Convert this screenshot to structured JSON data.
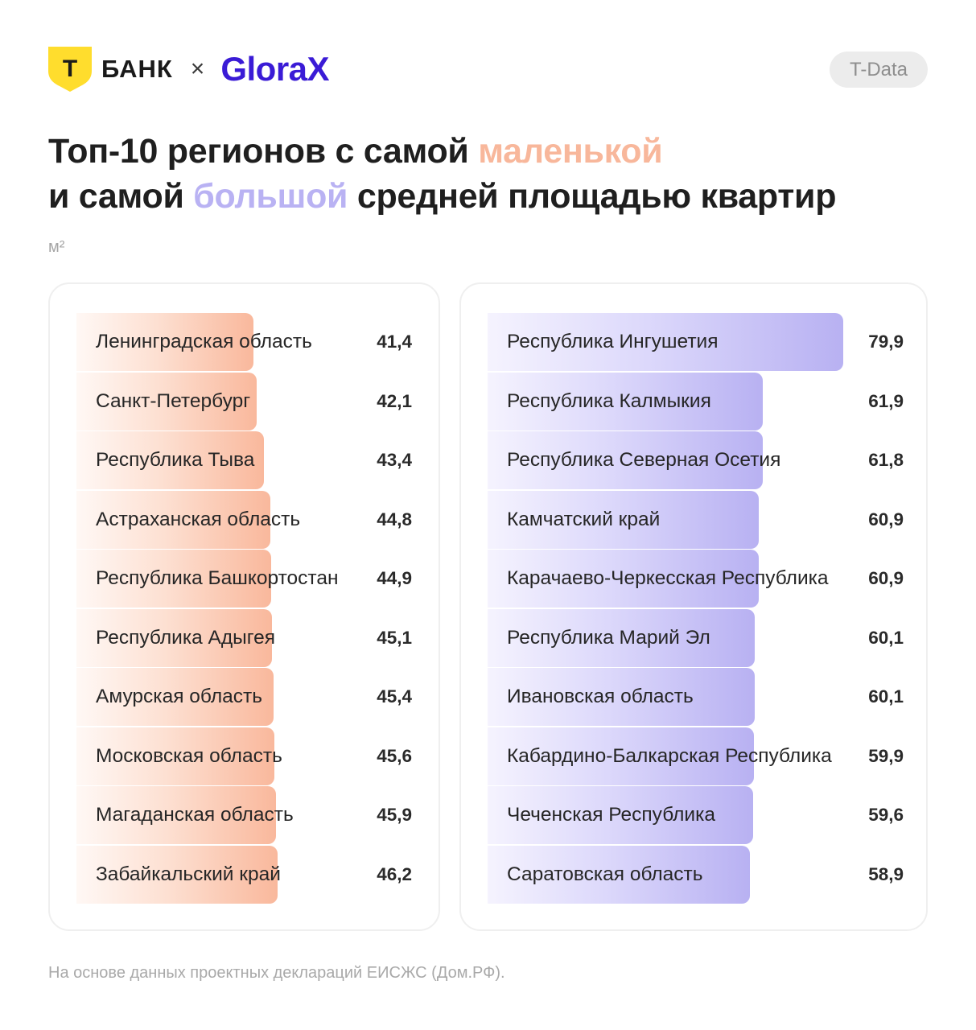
{
  "brand": {
    "bank_letter": "Т",
    "bank_name": "БАНК",
    "separator": "×",
    "partner": "GloraX",
    "shield_color": "#ffdd2d",
    "partner_color": "#3a1bd6"
  },
  "badge": "T-Data",
  "title": {
    "part1": "Топ-10 регионов с самой ",
    "highlight_small": "маленькой",
    "part2": "и самой ",
    "highlight_big": "большой",
    "part3": " средней площадью квартир"
  },
  "unit": "м²",
  "chart_data": [
    {
      "type": "bar",
      "orientation": "horizontal",
      "color": "#f9b89c",
      "categories": [
        "Ленинградская область",
        "Санкт-Петербург",
        "Республика Тыва",
        "Астраханская область",
        "Республика Башкортостан",
        "Республика Адыгея",
        "Амурская область",
        "Московская область",
        "Магаданская область",
        "Забайкальский край"
      ],
      "values": [
        41.4,
        42.1,
        43.4,
        44.8,
        44.9,
        45.1,
        45.4,
        45.6,
        45.9,
        46.2
      ],
      "value_labels": [
        "41,4",
        "42,1",
        "43,4",
        "44,8",
        "44,9",
        "45,1",
        "45,4",
        "45,6",
        "45,9",
        "46,2"
      ]
    },
    {
      "type": "bar",
      "orientation": "horizontal",
      "color": "#b8b1f2",
      "categories": [
        "Республика Ингушетия",
        "Республика Калмыкия",
        "Республика Северная Осетия",
        "Камчатский край",
        "Карачаево-Черкесская Республика",
        "Республика Марий Эл",
        "Ивановская область",
        "Кабардино-Балкарская Республика",
        "Чеченская Республика",
        "Саратовская область"
      ],
      "values": [
        79.9,
        61.9,
        61.8,
        60.9,
        60.9,
        60.1,
        60.1,
        59.9,
        59.6,
        58.9
      ],
      "value_labels": [
        "79,9",
        "61,9",
        "61,8",
        "60,9",
        "60,9",
        "60,1",
        "60,1",
        "59,9",
        "59,6",
        "58,9"
      ]
    }
  ],
  "footnote": "На основе данных проектных деклараций ЕИСЖС (Дом.РФ)."
}
